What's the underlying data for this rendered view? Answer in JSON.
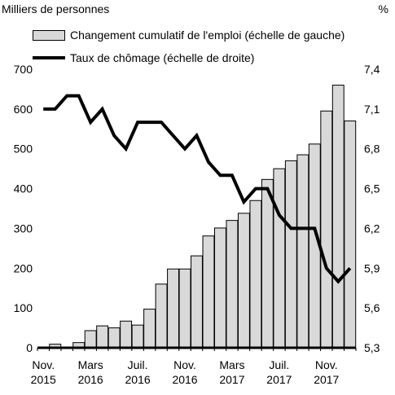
{
  "chart_data": {
    "type": "bar",
    "left_axis_label": "Milliers de personnes",
    "right_axis_label": "%",
    "left_ylim": [
      0,
      700
    ],
    "left_ticks": [
      "0",
      "100",
      "200",
      "300",
      "400",
      "500",
      "600",
      "700"
    ],
    "right_ylim": [
      5.3,
      7.4
    ],
    "right_ticks": [
      "5,3",
      "5,6",
      "5,9",
      "6,2",
      "6,5",
      "6,8",
      "7,1",
      "7,4"
    ],
    "x_tick_labels": [
      {
        "index": 0,
        "line1": "Nov.",
        "line2": "2015"
      },
      {
        "index": 4,
        "line1": "Mars",
        "line2": "2016"
      },
      {
        "index": 8,
        "line1": "Juil.",
        "line2": "2016"
      },
      {
        "index": 12,
        "line1": "Nov.",
        "line2": "2016"
      },
      {
        "index": 16,
        "line1": "Mars",
        "line2": "2017"
      },
      {
        "index": 20,
        "line1": "Juil.",
        "line2": "2017"
      },
      {
        "index": 24,
        "line1": "Nov.",
        "line2": "2017"
      }
    ],
    "categories": [
      "2015-11",
      "2015-12",
      "2016-01",
      "2016-02",
      "2016-03",
      "2016-04",
      "2016-05",
      "2016-06",
      "2016-07",
      "2016-08",
      "2016-09",
      "2016-10",
      "2016-11",
      "2016-12",
      "2017-01",
      "2017-02",
      "2017-03",
      "2017-04",
      "2017-05",
      "2017-06",
      "2017-07",
      "2017-08",
      "2017-09",
      "2017-10",
      "2017-11",
      "2017-12",
      "2018-01"
    ],
    "series": [
      {
        "name": "Changement cumulatif de l'emploi (échelle de gauche)",
        "type": "bar",
        "axis": "left",
        "color": "#d9d9d9",
        "values": [
          0,
          9,
          0,
          13,
          43,
          55,
          50,
          67,
          57,
          97,
          160,
          198,
          198,
          231,
          281,
          301,
          320,
          338,
          370,
          423,
          450,
          470,
          485,
          512,
          595,
          660,
          570
        ]
      },
      {
        "name": "Taux de chômage (échelle de droite)",
        "type": "line",
        "axis": "right",
        "color": "#000000",
        "values": [
          7.1,
          7.1,
          7.2,
          7.2,
          7.0,
          7.1,
          6.9,
          6.8,
          7.0,
          7.0,
          7.0,
          6.9,
          6.8,
          6.9,
          6.7,
          6.6,
          6.6,
          6.4,
          6.5,
          6.5,
          6.3,
          6.2,
          6.2,
          6.2,
          5.9,
          5.8,
          5.9
        ]
      }
    ]
  }
}
